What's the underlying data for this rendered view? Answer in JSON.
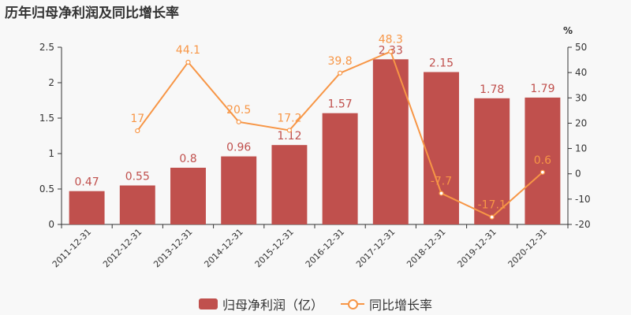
{
  "title": "历年归母净利润及同比增长率",
  "chart_data": {
    "type": "bar",
    "categories": [
      "2011-12-31",
      "2012-12-31",
      "2013-12-31",
      "2014-12-31",
      "2015-12-31",
      "2016-12-31",
      "2017-12-31",
      "2018-12-31",
      "2019-12-31",
      "2020-12-31"
    ],
    "series": [
      {
        "name": "归母净利润（亿）",
        "type": "bar",
        "axis": "left",
        "color": "#c0504d",
        "values": [
          0.47,
          0.55,
          0.8,
          0.96,
          1.12,
          1.57,
          2.33,
          2.15,
          1.78,
          1.79
        ]
      },
      {
        "name": "同比增长率",
        "type": "line",
        "axis": "right",
        "color": "#f79646",
        "values": [
          null,
          17,
          44.1,
          20.5,
          17.2,
          39.8,
          48.3,
          -7.7,
          -17.1,
          0.6
        ]
      }
    ],
    "y_left": {
      "min": 0,
      "max": 2.5,
      "ticks": [
        "0",
        "0.5",
        "1",
        "1.5",
        "2",
        "2.5"
      ]
    },
    "y_right": {
      "min": -20,
      "max": 50,
      "unit": "%",
      "ticks": [
        "-20",
        "-10",
        "0",
        "10",
        "20",
        "30",
        "40",
        "50"
      ]
    },
    "legend_position": "bottom",
    "grid": false
  }
}
